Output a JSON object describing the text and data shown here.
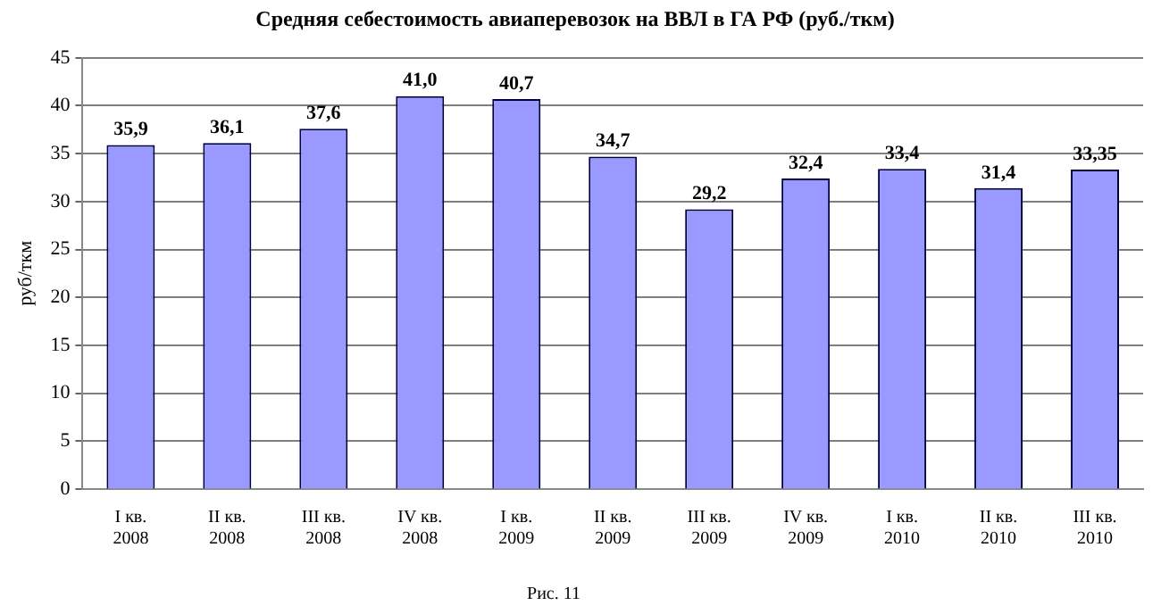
{
  "chart_data": {
    "type": "bar",
    "title": "Средняя себестоимость авиаперевозок на ВВЛ в ГА РФ (руб./ткм)",
    "ylabel": "руб/ткм",
    "categories": [
      "I кв.\n2008",
      "II кв.\n2008",
      "III кв.\n2008",
      "IV кв.\n2008",
      "I кв.\n2009",
      "II кв.\n2009",
      "III кв.\n2009",
      "IV кв.\n2009",
      "I кв.\n2010",
      "II кв.\n2010",
      "III кв.\n2010"
    ],
    "values": [
      35.9,
      36.1,
      37.6,
      41.0,
      40.7,
      34.7,
      29.2,
      32.4,
      33.4,
      31.4,
      33.35
    ],
    "value_labels": [
      "35,9",
      "36,1",
      "37,6",
      "41,0",
      "40,7",
      "34,7",
      "29,2",
      "32,4",
      "33,4",
      "31,4",
      "33,35"
    ],
    "color": "#9999ff",
    "ylim": [
      0,
      45
    ],
    "yticks": [
      0,
      5,
      10,
      15,
      20,
      25,
      30,
      35,
      40,
      45
    ],
    "grid": "y",
    "legend": false,
    "annotations": [
      "Рис. 11"
    ]
  }
}
